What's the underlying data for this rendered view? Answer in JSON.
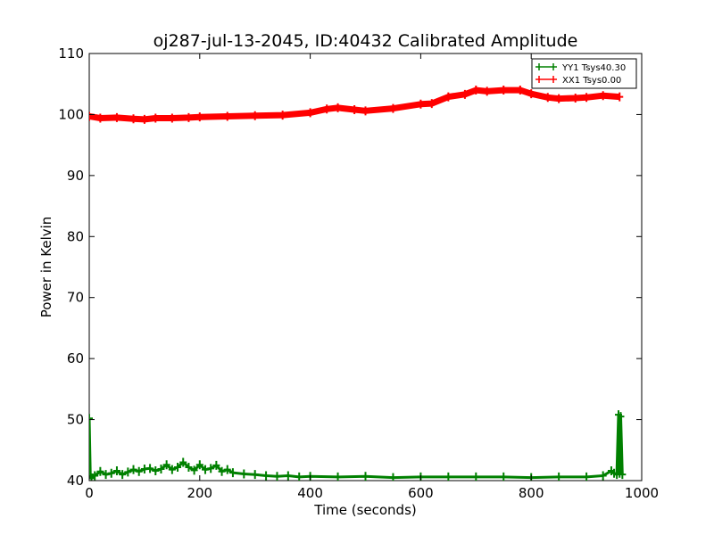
{
  "chart_data": {
    "type": "line",
    "title": "oj287-jul-13-2045, ID:40432 Calibrated Amplitude",
    "xlabel": "Time (seconds)",
    "ylabel": "Power in Kelvin",
    "xlim": [
      0,
      1000
    ],
    "ylim": [
      40,
      110
    ],
    "xticks": [
      0,
      200,
      400,
      600,
      800,
      1000
    ],
    "yticks": [
      40,
      50,
      60,
      70,
      80,
      90,
      100,
      110
    ],
    "grid": false,
    "legend_position": "top-right",
    "series": [
      {
        "name": "YY1 Tsys40.30",
        "color": "#008000",
        "x": [
          0,
          2,
          4,
          10,
          20,
          30,
          40,
          50,
          60,
          70,
          80,
          90,
          100,
          110,
          120,
          130,
          140,
          150,
          160,
          170,
          180,
          190,
          200,
          210,
          220,
          230,
          240,
          250,
          260,
          280,
          300,
          320,
          340,
          360,
          380,
          400,
          450,
          500,
          550,
          600,
          650,
          700,
          750,
          800,
          850,
          900,
          930,
          945,
          950,
          955,
          958,
          960,
          962,
          965
        ],
        "values": [
          50.2,
          41.0,
          40.4,
          40.8,
          41.5,
          41.0,
          41.2,
          41.6,
          41.0,
          41.4,
          41.8,
          41.5,
          41.9,
          42.0,
          41.6,
          41.9,
          42.6,
          41.8,
          42.2,
          43.0,
          42.2,
          41.7,
          42.6,
          41.8,
          42.0,
          42.5,
          41.5,
          41.8,
          41.3,
          41.1,
          41.0,
          40.8,
          40.7,
          40.8,
          40.6,
          40.7,
          40.6,
          40.7,
          40.5,
          40.6,
          40.6,
          40.6,
          40.6,
          40.5,
          40.6,
          40.6,
          40.8,
          41.6,
          41.2,
          41.0,
          50.8,
          41.2,
          50.5,
          41.0
        ]
      },
      {
        "name": "XX1 Tsys0.00",
        "color": "#ff0000",
        "x": [
          0,
          20,
          50,
          80,
          100,
          120,
          150,
          180,
          200,
          250,
          300,
          350,
          400,
          430,
          450,
          480,
          500,
          550,
          600,
          620,
          650,
          680,
          700,
          720,
          750,
          780,
          800,
          830,
          850,
          880,
          900,
          930,
          960
        ],
        "values": [
          99.7,
          99.4,
          99.5,
          99.3,
          99.2,
          99.4,
          99.4,
          99.5,
          99.6,
          99.7,
          99.8,
          99.9,
          100.3,
          100.9,
          101.1,
          100.8,
          100.6,
          101.0,
          101.7,
          101.8,
          102.9,
          103.3,
          104.0,
          103.8,
          104.0,
          104.0,
          103.4,
          102.8,
          102.6,
          102.7,
          102.8,
          103.1,
          102.9
        ]
      }
    ]
  }
}
